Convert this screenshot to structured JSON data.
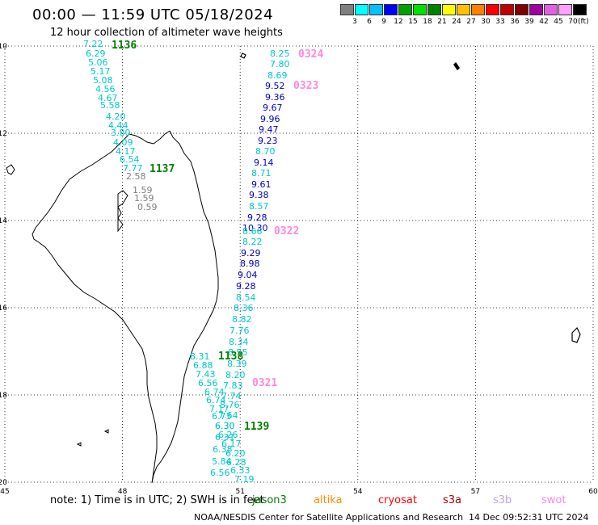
{
  "header": {
    "title": "00:00 — 11:59 UTC 05/18/2024",
    "subtitle": "12 hour collection of altimeter wave heights"
  },
  "colorbar": {
    "unit": "(ft)",
    "colors": [
      "#808080",
      "#00ffff",
      "#00c0ff",
      "#0000ff",
      "#00a000",
      "#00e000",
      "#008000",
      "#ffff00",
      "#ffc000",
      "#ff8000",
      "#ff0000",
      "#c00000",
      "#800000",
      "#a000a0",
      "#e060e0",
      "#ffa0ff",
      "#000000"
    ],
    "labels": [
      "3",
      "6",
      "9",
      "12",
      "15",
      "18",
      "21",
      "24",
      "27",
      "30",
      "33",
      "36",
      "39",
      "42",
      "45",
      "70"
    ]
  },
  "map": {
    "x_ticks": [
      "45",
      "48",
      "51",
      "54",
      "57",
      "60"
    ],
    "y_ticks": [
      "-10",
      "-12",
      "-14",
      "-16",
      "-18",
      "-20"
    ],
    "pass_labels": [
      {
        "text": "1136",
        "color": "#008000"
      },
      {
        "text": "1137",
        "color": "#008000"
      },
      {
        "text": "1138",
        "color": "#008000"
      },
      {
        "text": "1139",
        "color": "#008000"
      },
      {
        "text": "0321",
        "color": "#ff88dd"
      },
      {
        "text": "0322",
        "color": "#ff88dd"
      },
      {
        "text": "0323",
        "color": "#ff88dd"
      },
      {
        "text": "0324",
        "color": "#ff88dd"
      }
    ],
    "observations": [
      {
        "v": "7.22",
        "c": "#00c8c8"
      },
      {
        "v": "6.29",
        "c": "#00c8c8"
      },
      {
        "v": "5.06",
        "c": "#00c8c8"
      },
      {
        "v": "5.17",
        "c": "#00c8c8"
      },
      {
        "v": "5.08",
        "c": "#00c8c8"
      },
      {
        "v": "4.56",
        "c": "#00c8c8"
      },
      {
        "v": "4.67",
        "c": "#00c8c8"
      },
      {
        "v": "5.58",
        "c": "#00c8c8"
      },
      {
        "v": "4.20",
        "c": "#00c8c8"
      },
      {
        "v": "4.44",
        "c": "#00c8c8"
      },
      {
        "v": "3.80",
        "c": "#00c8c8"
      },
      {
        "v": "4.09",
        "c": "#00c8c8"
      },
      {
        "v": "4.17",
        "c": "#00c8c8"
      },
      {
        "v": "6.54",
        "c": "#00c8c8"
      },
      {
        "v": "7.77",
        "c": "#00c8c8"
      },
      {
        "v": "2.58",
        "c": "#808080"
      },
      {
        "v": "1.59",
        "c": "#808080"
      },
      {
        "v": "1.59",
        "c": "#808080"
      },
      {
        "v": "0.59",
        "c": "#808080"
      },
      {
        "v": "8.25",
        "c": "#00c8c8"
      },
      {
        "v": "7.80",
        "c": "#00c8c8"
      },
      {
        "v": "8.69",
        "c": "#00c8c8"
      },
      {
        "v": "9.52",
        "c": "#0000c8"
      },
      {
        "v": "9.36",
        "c": "#0000c8"
      },
      {
        "v": "9.67",
        "c": "#0000c8"
      },
      {
        "v": "9.96",
        "c": "#0000c8"
      },
      {
        "v": "9.47",
        "c": "#0000c8"
      },
      {
        "v": "9.23",
        "c": "#0000c8"
      },
      {
        "v": "8.70",
        "c": "#00c8c8"
      },
      {
        "v": "9.14",
        "c": "#0000c8"
      },
      {
        "v": "8.71",
        "c": "#00c8c8"
      },
      {
        "v": "9.61",
        "c": "#0000c8"
      },
      {
        "v": "9.38",
        "c": "#0000c8"
      },
      {
        "v": "8.57",
        "c": "#00c8c8"
      },
      {
        "v": "9.28",
        "c": "#0000c8"
      },
      {
        "v": "10.30",
        "c": "#0000c8"
      },
      {
        "v": "8.66",
        "c": "#00c8c8"
      },
      {
        "v": "8.22",
        "c": "#00c8c8"
      },
      {
        "v": "9.29",
        "c": "#0000c8"
      },
      {
        "v": "8.98",
        "c": "#0000c8"
      },
      {
        "v": "9.04",
        "c": "#0000c8"
      },
      {
        "v": "9.28",
        "c": "#0000c8"
      },
      {
        "v": "8.54",
        "c": "#00c8c8"
      },
      {
        "v": "8.36",
        "c": "#00c8c8"
      },
      {
        "v": "8.82",
        "c": "#00c8c8"
      },
      {
        "v": "7.76",
        "c": "#00c8c8"
      },
      {
        "v": "8.34",
        "c": "#00c8c8"
      },
      {
        "v": "8.55",
        "c": "#00c8c8"
      },
      {
        "v": "8.39",
        "c": "#00c8c8"
      },
      {
        "v": "8.20",
        "c": "#00c8c8"
      },
      {
        "v": "7.83",
        "c": "#00c8c8"
      },
      {
        "v": "7.74",
        "c": "#00c8c8"
      },
      {
        "v": "8.76",
        "c": "#00c8c8"
      },
      {
        "v": "7.64",
        "c": "#00c8c8"
      },
      {
        "v": "8.31",
        "c": "#00c8c8"
      },
      {
        "v": "6.88",
        "c": "#00c8c8"
      },
      {
        "v": "7.43",
        "c": "#00c8c8"
      },
      {
        "v": "6.56",
        "c": "#00c8c8"
      },
      {
        "v": "6.74",
        "c": "#00c8c8"
      },
      {
        "v": "6.74",
        "c": "#00c8c8"
      },
      {
        "v": "7.17",
        "c": "#00c8c8"
      },
      {
        "v": "6.73",
        "c": "#00c8c8"
      },
      {
        "v": "6.30",
        "c": "#00c8c8"
      },
      {
        "v": "6.30",
        "c": "#00c8c8"
      },
      {
        "v": "6.26",
        "c": "#00c8c8"
      },
      {
        "v": "6.31",
        "c": "#00c8c8"
      },
      {
        "v": "6.17",
        "c": "#00c8c8"
      },
      {
        "v": "6.38",
        "c": "#00c8c8"
      },
      {
        "v": "6.20",
        "c": "#00c8c8"
      },
      {
        "v": "5.84",
        "c": "#00c8c8"
      },
      {
        "v": "6.28",
        "c": "#00c8c8"
      },
      {
        "v": "6.56",
        "c": "#00c8c8"
      },
      {
        "v": "6.33",
        "c": "#00c8c8"
      },
      {
        "v": "7.19",
        "c": "#00c8c8"
      }
    ]
  },
  "footer": {
    "note": "note:  1) Time is in UTC;  2) SWH is in feet",
    "satellites": [
      {
        "name": "jason3",
        "color": "#008000"
      },
      {
        "name": "altika",
        "color": "#ff8c00"
      },
      {
        "name": "cryosat",
        "color": "#ff0000"
      },
      {
        "name": "s3a",
        "color": "#a00000"
      },
      {
        "name": "s3b",
        "color": "#c0a0e8"
      },
      {
        "name": "swot",
        "color": "#ff88dd"
      }
    ],
    "credit": "NOAA/NESDIS Center for Satellite Applications and Research",
    "timestamp": "14 Dec 09:52:31 UTC 2024"
  }
}
